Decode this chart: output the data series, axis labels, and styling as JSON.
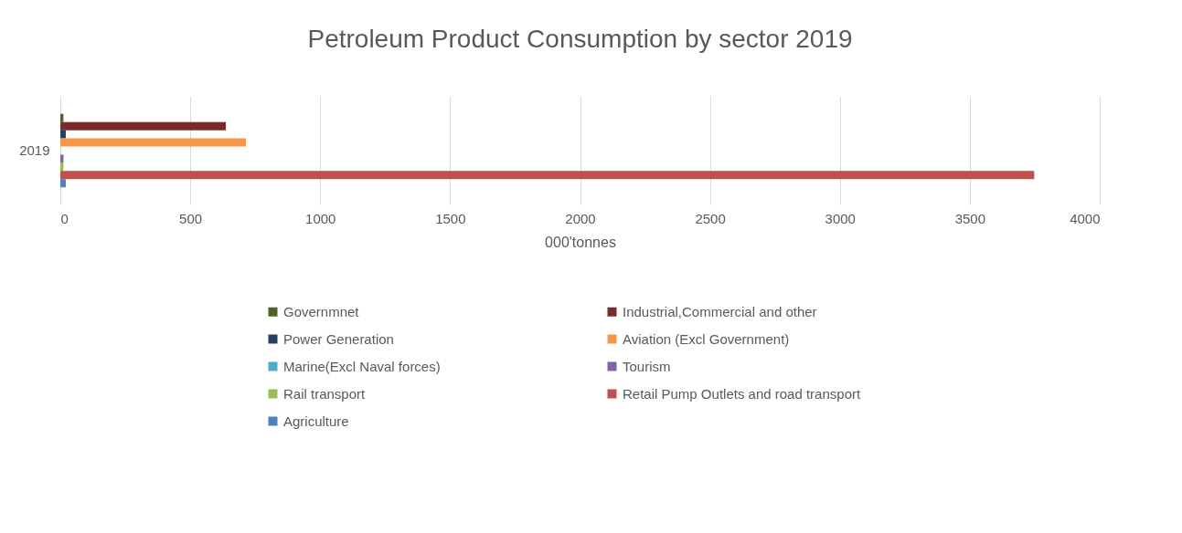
{
  "chart_data": {
    "type": "bar",
    "orientation": "horizontal",
    "title": "Petroleum Product Consumption by sector 2019",
    "xlabel": "000'tonnes",
    "categories": [
      "2019"
    ],
    "series": [
      {
        "name": "Governmnet",
        "color": "#4f6228",
        "values": [
          12
        ]
      },
      {
        "name": "Industrial,Commercial and other",
        "color": "#772c2a",
        "values": [
          637
        ]
      },
      {
        "name": "Power Generation",
        "color": "#254061",
        "values": [
          21
        ]
      },
      {
        "name": "Aviation (Excl Government)",
        "color": "#f79646",
        "values": [
          714
        ]
      },
      {
        "name": "Marine(Excl Naval forces)",
        "color": "#4bacc6",
        "values": [
          0
        ]
      },
      {
        "name": "Tourism",
        "color": "#8064a2",
        "values": [
          12
        ]
      },
      {
        "name": "Rail transport",
        "color": "#9bbb59",
        "values": [
          12
        ]
      },
      {
        "name": "Retail Pump Outlets and road transport",
        "color": "#c0504d",
        "values": [
          3748
        ]
      },
      {
        "name": "Agriculture",
        "color": "#4f81bd",
        "values": [
          21
        ]
      }
    ],
    "xlim": [
      0,
      4000
    ],
    "xticks": [
      0,
      500,
      1000,
      1500,
      2000,
      2500,
      3000,
      3500,
      4000
    ],
    "grid": "x",
    "legend": "bottom"
  }
}
